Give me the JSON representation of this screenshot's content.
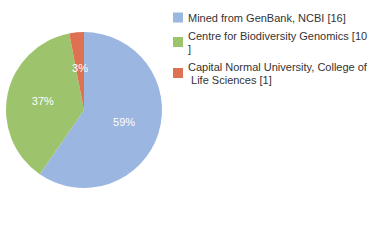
{
  "chart_data": {
    "type": "pie",
    "categories": [
      "Mined from GenBank, NCBI [16]",
      "Centre for Biodiversity Genomics [10]",
      "Capital Normal University, College of Life Sciences [1]"
    ],
    "values": [
      59,
      37,
      3
    ],
    "value_labels": [
      "59%",
      "37%",
      "3%"
    ],
    "colors": [
      "#9bb6e0",
      "#9dc46c",
      "#de7152"
    ],
    "data_labels": true,
    "legend": "top-right"
  }
}
